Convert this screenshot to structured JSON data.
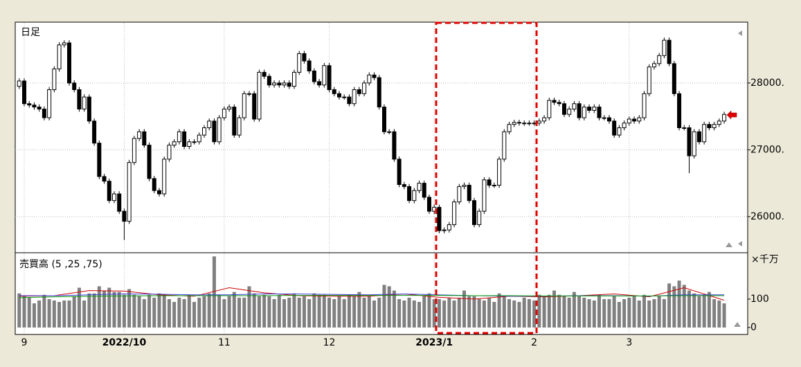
{
  "chart_data": [
    {
      "type": "candlestick",
      "title": "日足",
      "up_color": "#ffffff",
      "down_color": "#000000",
      "xlim": [
        -0.8,
        145.7
      ],
      "xticks": [
        {
          "value": 1,
          "label": "9"
        },
        {
          "value": 21,
          "label": "2022/10"
        },
        {
          "value": 41,
          "label": "11"
        },
        {
          "value": 62,
          "label": "12"
        },
        {
          "value": 83,
          "label": "2023/1"
        },
        {
          "value": 103,
          "label": "2"
        },
        {
          "value": 122,
          "label": "3"
        }
      ],
      "ylim": [
        25480,
        28900
      ],
      "yticks": [
        {
          "value": 26000,
          "label": "26000."
        },
        {
          "value": 27000,
          "label": "27000."
        },
        {
          "value": 28000,
          "label": "28000."
        }
      ],
      "grid": true,
      "open": [
        27950,
        28030,
        27690,
        27670,
        27640,
        27610,
        27480,
        27900,
        28210,
        28570,
        28600,
        28000,
        27900,
        27610,
        27790,
        27430,
        27100,
        26600,
        26530,
        26240,
        26340,
        26080,
        25930,
        26810,
        27170,
        27270,
        27070,
        26570,
        26390,
        26340,
        26860,
        27070,
        27120,
        27270,
        27050,
        27120,
        27120,
        27220,
        27330,
        27430,
        27120,
        27480,
        27610,
        27640,
        27220,
        27480,
        27840,
        27840,
        27460,
        28160,
        28100,
        27970,
        28000,
        27970,
        28000,
        27950,
        28160,
        28440,
        28330,
        28180,
        28020,
        27970,
        28260,
        27900,
        27840,
        27790,
        27790,
        27690,
        27900,
        27840,
        28000,
        28120,
        28080,
        27640,
        27270,
        27270,
        26860,
        26480,
        26450,
        26240,
        26390,
        26500,
        26290,
        26080,
        26140,
        25790,
        25800,
        25880,
        26220,
        26450,
        26470,
        26240,
        25880,
        26080,
        26550,
        26470,
        26470,
        26860,
        27270,
        27380,
        27410,
        27400,
        27400,
        27400,
        27400,
        27430,
        27480,
        27740,
        27710,
        27690,
        27530,
        27610,
        27690,
        27480,
        27640,
        27590,
        27640,
        27480,
        27480,
        27430,
        27220,
        27330,
        27400,
        27460,
        27430,
        27480,
        27840,
        28240,
        28290,
        28410,
        28640,
        28290,
        27840,
        27330,
        27330,
        26910,
        27270,
        27120,
        27380,
        27330,
        27380,
        27430
      ],
      "high": [
        28070,
        28070,
        27730,
        27710,
        27680,
        27650,
        27940,
        28250,
        28610,
        28640,
        28640,
        28040,
        27940,
        27830,
        27830,
        27470,
        27140,
        26640,
        26570,
        26380,
        26380,
        26120,
        26850,
        27210,
        27310,
        27310,
        27110,
        26610,
        26430,
        26900,
        27110,
        27160,
        27310,
        27310,
        27160,
        27160,
        27260,
        27370,
        27470,
        27470,
        27520,
        27650,
        27680,
        27680,
        27520,
        27880,
        27880,
        27880,
        28200,
        28200,
        28140,
        28040,
        28040,
        28040,
        28040,
        28200,
        28480,
        28480,
        28370,
        28220,
        28060,
        28300,
        28300,
        27940,
        27880,
        27830,
        27830,
        27940,
        27940,
        28040,
        28160,
        28160,
        28120,
        27680,
        27310,
        27310,
        26900,
        26520,
        26490,
        26430,
        26540,
        26540,
        26330,
        26180,
        26180,
        25840,
        25920,
        26260,
        26490,
        26510,
        26510,
        26280,
        26120,
        26590,
        26590,
        26510,
        26900,
        27310,
        27420,
        27450,
        27450,
        27440,
        27440,
        27440,
        27470,
        27520,
        27780,
        27780,
        27750,
        27730,
        27650,
        27730,
        27730,
        27680,
        27680,
        27680,
        27680,
        27520,
        27520,
        27470,
        27370,
        27440,
        27500,
        27500,
        27520,
        27880,
        28280,
        28330,
        28450,
        28680,
        28680,
        28330,
        27880,
        27370,
        27370,
        27310,
        27310,
        27420,
        27420,
        27420,
        27470,
        27570
      ],
      "low": [
        27910,
        27650,
        27630,
        27600,
        27570,
        27440,
        27440,
        27860,
        28170,
        28530,
        27960,
        27860,
        27570,
        27570,
        27390,
        27060,
        26560,
        26490,
        26200,
        26200,
        26040,
        25650,
        25890,
        26770,
        27130,
        27030,
        26530,
        26350,
        26300,
        26300,
        26820,
        27030,
        27080,
        27010,
        27010,
        27080,
        27080,
        27180,
        27290,
        27080,
        27080,
        27440,
        27570,
        27180,
        27180,
        27440,
        27800,
        27420,
        27420,
        28060,
        27930,
        27930,
        27930,
        27930,
        27910,
        27910,
        28120,
        28290,
        28140,
        27980,
        27930,
        27930,
        27860,
        27800,
        27750,
        27750,
        27650,
        27650,
        27800,
        27800,
        27960,
        28040,
        27600,
        27230,
        27230,
        26820,
        26440,
        26410,
        26200,
        26200,
        26350,
        26250,
        26040,
        26040,
        25750,
        25750,
        25760,
        25840,
        26180,
        26410,
        26200,
        25840,
        25840,
        26040,
        26430,
        26430,
        26430,
        26820,
        27230,
        27340,
        27360,
        27360,
        27360,
        27360,
        27360,
        27390,
        27440,
        27670,
        27650,
        27490,
        27490,
        27570,
        27440,
        27440,
        27550,
        27550,
        27440,
        27440,
        27390,
        27180,
        27180,
        27290,
        27360,
        27390,
        27390,
        27440,
        27800,
        28200,
        28250,
        28370,
        28250,
        27800,
        27290,
        27290,
        26650,
        26870,
        27080,
        27080,
        27290,
        27290,
        27340,
        27390
      ],
      "close": [
        28030,
        27690,
        27670,
        27640,
        27610,
        27480,
        27900,
        28210,
        28570,
        28600,
        28000,
        27900,
        27610,
        27790,
        27430,
        27100,
        26600,
        26530,
        26240,
        26340,
        26080,
        25930,
        26810,
        27170,
        27270,
        27070,
        26570,
        26390,
        26340,
        26860,
        27070,
        27120,
        27270,
        27050,
        27120,
        27120,
        27220,
        27330,
        27430,
        27120,
        27480,
        27610,
        27640,
        27220,
        27480,
        27840,
        27840,
        27460,
        28160,
        28100,
        27970,
        28000,
        27970,
        28000,
        27950,
        28160,
        28440,
        28330,
        28180,
        28020,
        27970,
        28260,
        27900,
        27840,
        27790,
        27790,
        27690,
        27900,
        27840,
        28000,
        28120,
        28080,
        27640,
        27270,
        27270,
        26860,
        26480,
        26450,
        26240,
        26390,
        26500,
        26290,
        26080,
        26140,
        25790,
        25800,
        25880,
        26220,
        26450,
        26470,
        26240,
        25880,
        26080,
        26550,
        26470,
        26470,
        26860,
        27270,
        27380,
        27410,
        27400,
        27400,
        27400,
        27400,
        27430,
        27480,
        27740,
        27710,
        27690,
        27530,
        27610,
        27690,
        27480,
        27640,
        27590,
        27640,
        27480,
        27480,
        27430,
        27220,
        27330,
        27400,
        27460,
        27430,
        27480,
        27840,
        28240,
        28290,
        28410,
        28640,
        28290,
        27840,
        27330,
        27330,
        26910,
        27270,
        27120,
        27380,
        27330,
        27380,
        27430,
        27530
      ]
    },
    {
      "type": "bar",
      "title": "売買高 (5 ,25 ,75)",
      "unit_label": "×千万",
      "color": "#808080",
      "xlim": [
        -0.8,
        145.7
      ],
      "ylim": [
        0,
        258
      ],
      "yticks": [
        0,
        100
      ],
      "values": [
        120,
        110,
        105,
        85,
        95,
        115,
        100,
        95,
        90,
        95,
        95,
        110,
        140,
        95,
        120,
        120,
        145,
        130,
        140,
        125,
        125,
        115,
        135,
        115,
        110,
        100,
        115,
        105,
        120,
        115,
        100,
        90,
        105,
        100,
        115,
        90,
        105,
        110,
        120,
        250,
        115,
        100,
        110,
        125,
        105,
        105,
        145,
        120,
        110,
        115,
        110,
        100,
        115,
        100,
        105,
        120,
        105,
        110,
        100,
        120,
        115,
        115,
        105,
        100,
        110,
        100,
        115,
        110,
        125,
        105,
        110,
        95,
        105,
        150,
        145,
        130,
        100,
        95,
        105,
        95,
        90,
        110,
        120,
        100,
        100,
        95,
        105,
        95,
        105,
        130,
        110,
        110,
        100,
        95,
        105,
        90,
        120,
        110,
        100,
        95,
        90,
        105,
        100,
        95,
        115,
        110,
        115,
        130,
        115,
        110,
        105,
        125,
        110,
        105,
        100,
        95,
        115,
        100,
        100,
        110,
        90,
        100,
        105,
        110,
        95,
        115,
        95,
        100,
        110,
        100,
        155,
        145,
        165,
        150,
        130,
        120,
        110,
        115,
        125,
        100,
        95,
        85
      ],
      "series": [
        {
          "color": "#cc0000",
          "x": [
            0,
            7,
            14,
            21,
            28,
            35,
            42,
            49,
            56,
            63,
            70,
            77,
            84,
            91,
            98,
            105,
            112,
            119,
            126,
            133,
            141
          ],
          "values": [
            110,
            112,
            130,
            128,
            115,
            110,
            140,
            122,
            112,
            110,
            110,
            118,
            106,
            100,
            110,
            108,
            112,
            118,
            108,
            140,
            96
          ]
        },
        {
          "color": "#4040e0",
          "x": [
            0,
            7,
            14,
            21,
            28,
            35,
            42,
            49,
            56,
            63,
            70,
            77,
            84,
            91,
            98,
            105,
            112,
            119,
            126,
            133,
            141
          ],
          "values": [
            112,
            112,
            115,
            118,
            117,
            115,
            115,
            118,
            118,
            116,
            115,
            118,
            115,
            112,
            110,
            110,
            112,
            112,
            110,
            115,
            115
          ]
        },
        {
          "color": "#009900",
          "x": [
            0,
            7,
            14,
            21,
            28,
            35,
            42,
            49,
            56,
            63,
            70,
            77,
            84,
            91,
            98,
            105,
            112,
            119,
            126,
            133,
            141
          ],
          "values": [
            105,
            108,
            110,
            111,
            112,
            112,
            112,
            112,
            113,
            113,
            113,
            113,
            113,
            112,
            112,
            111,
            111,
            111,
            111,
            112,
            112
          ]
        }
      ]
    }
  ]
}
